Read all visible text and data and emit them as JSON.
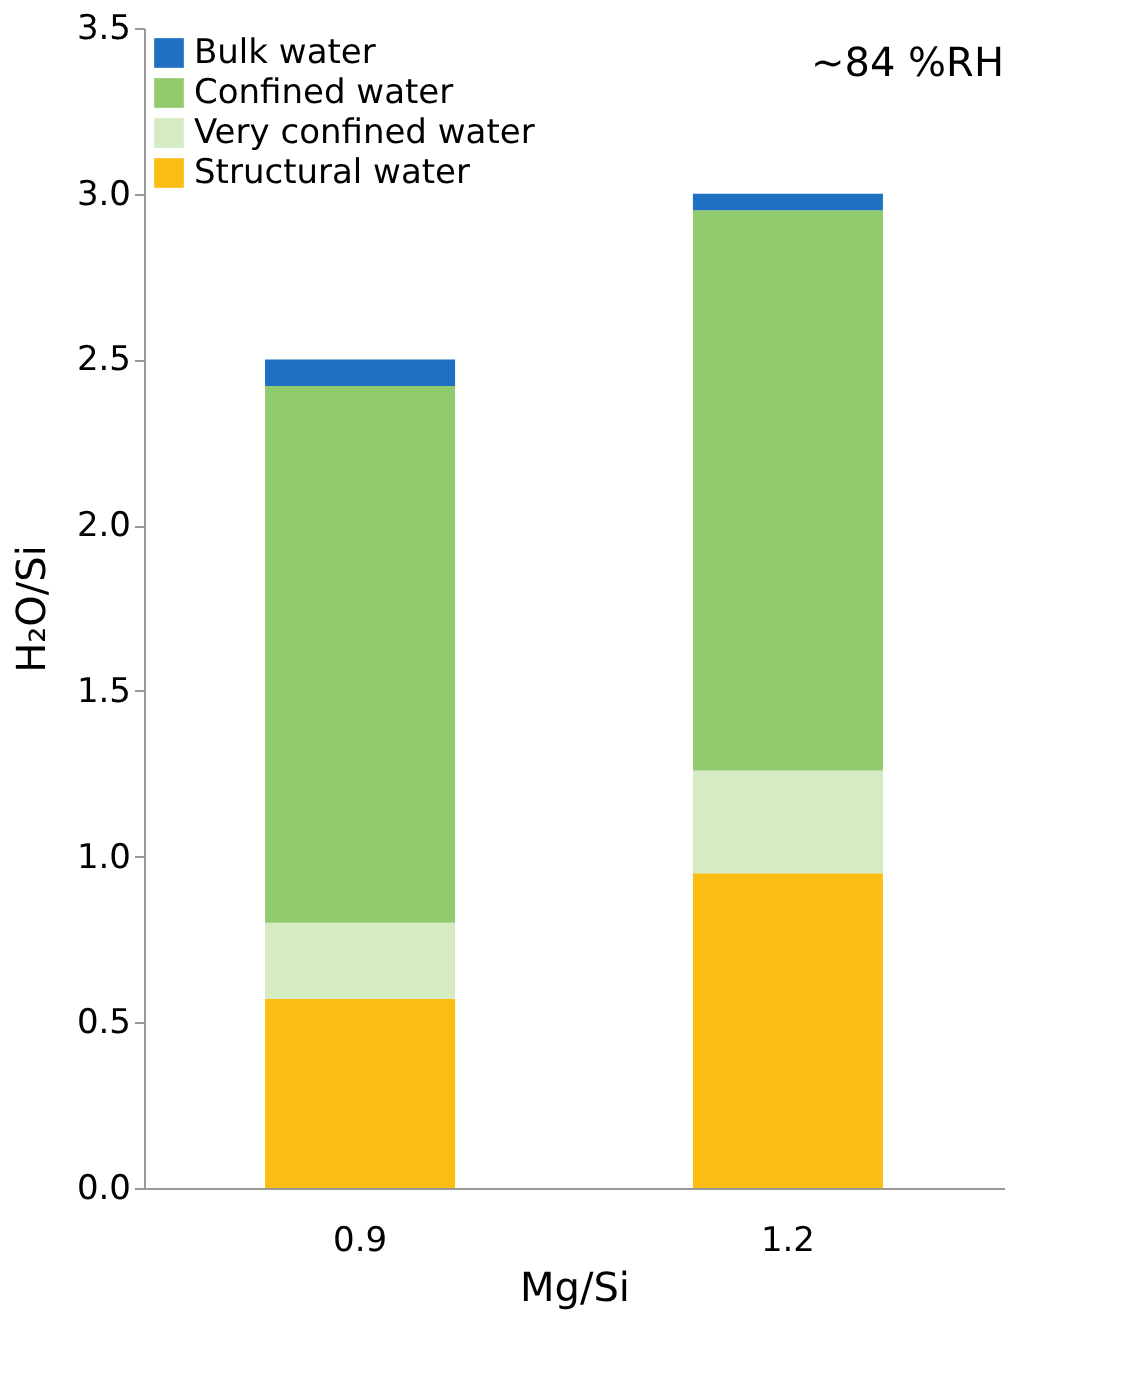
{
  "chart_data": {
    "type": "bar",
    "stacked": true,
    "xlabel": "Mg/Si",
    "ylabel": "H₂O/Si",
    "categories": [
      "0.9",
      "1.2"
    ],
    "series": [
      {
        "name": "Structural water",
        "color": "#fbbc14",
        "values": [
          0.57,
          0.95
        ]
      },
      {
        "name": "Very confined water",
        "color": "#d4ebc4",
        "values": [
          0.23,
          0.31
        ]
      },
      {
        "name": "Confined water",
        "color": "#92ca6e",
        "values": [
          1.62,
          1.69
        ]
      },
      {
        "name": "Bulk water",
        "color": "#1f6fc2",
        "values": [
          0.08,
          0.05
        ]
      }
    ],
    "ylim": [
      0,
      3.5
    ],
    "yticks": [
      {
        "value": 0,
        "label": "0.0"
      },
      0.5,
      {
        "value": 1,
        "label": "1.0"
      },
      1.5,
      {
        "value": 2,
        "label": "2.0"
      },
      2.5,
      {
        "value": 3,
        "label": "3.0"
      },
      3.5
    ],
    "grid": false,
    "legend": "top left",
    "annotations": [
      "~84 %RH"
    ]
  }
}
